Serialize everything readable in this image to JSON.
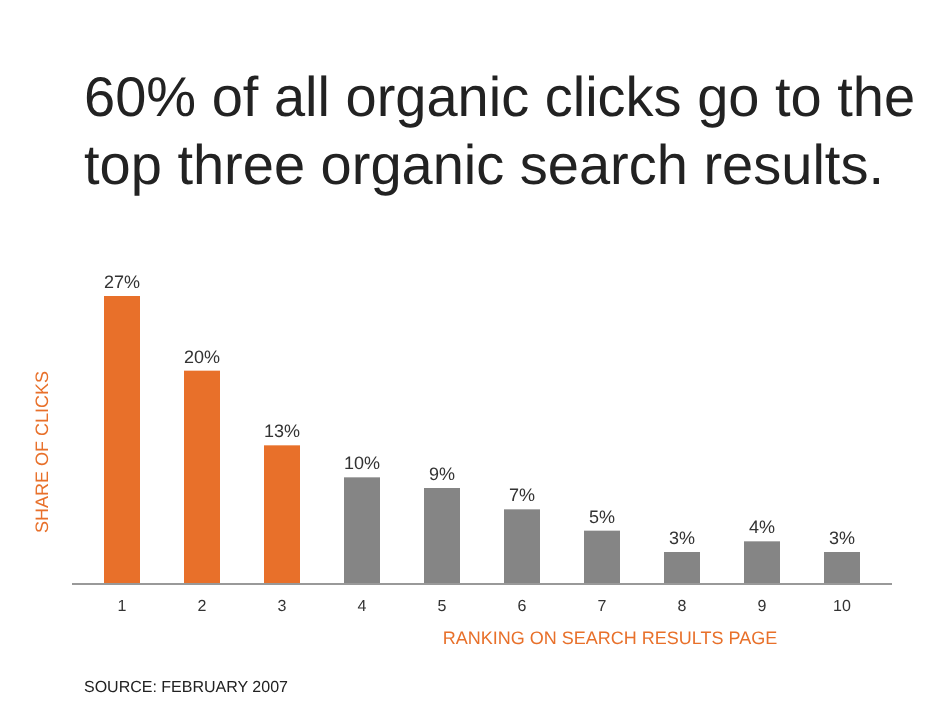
{
  "chart_data": {
    "type": "bar",
    "title": "60% of all organic clicks go to the top three organic search results.",
    "categories": [
      "1",
      "2",
      "3",
      "4",
      "5",
      "6",
      "7",
      "8",
      "9",
      "10"
    ],
    "values": [
      27,
      20,
      13,
      10,
      9,
      7,
      5,
      3,
      4,
      3
    ],
    "colors": [
      "#e8702a",
      "#e8702a",
      "#e8702a",
      "#858585",
      "#858585",
      "#858585",
      "#858585",
      "#858585",
      "#858585",
      "#858585"
    ],
    "value_labels": [
      "27%",
      "20%",
      "13%",
      "10%",
      "9%",
      "7%",
      "5%",
      "3%",
      "4%",
      "3%"
    ],
    "xlabel": "RANKING ON SEARCH RESULTS PAGE",
    "ylabel": "SHARE OF CLICKS",
    "annotations": [
      "SOURCE: FEBRUARY 2007"
    ]
  }
}
